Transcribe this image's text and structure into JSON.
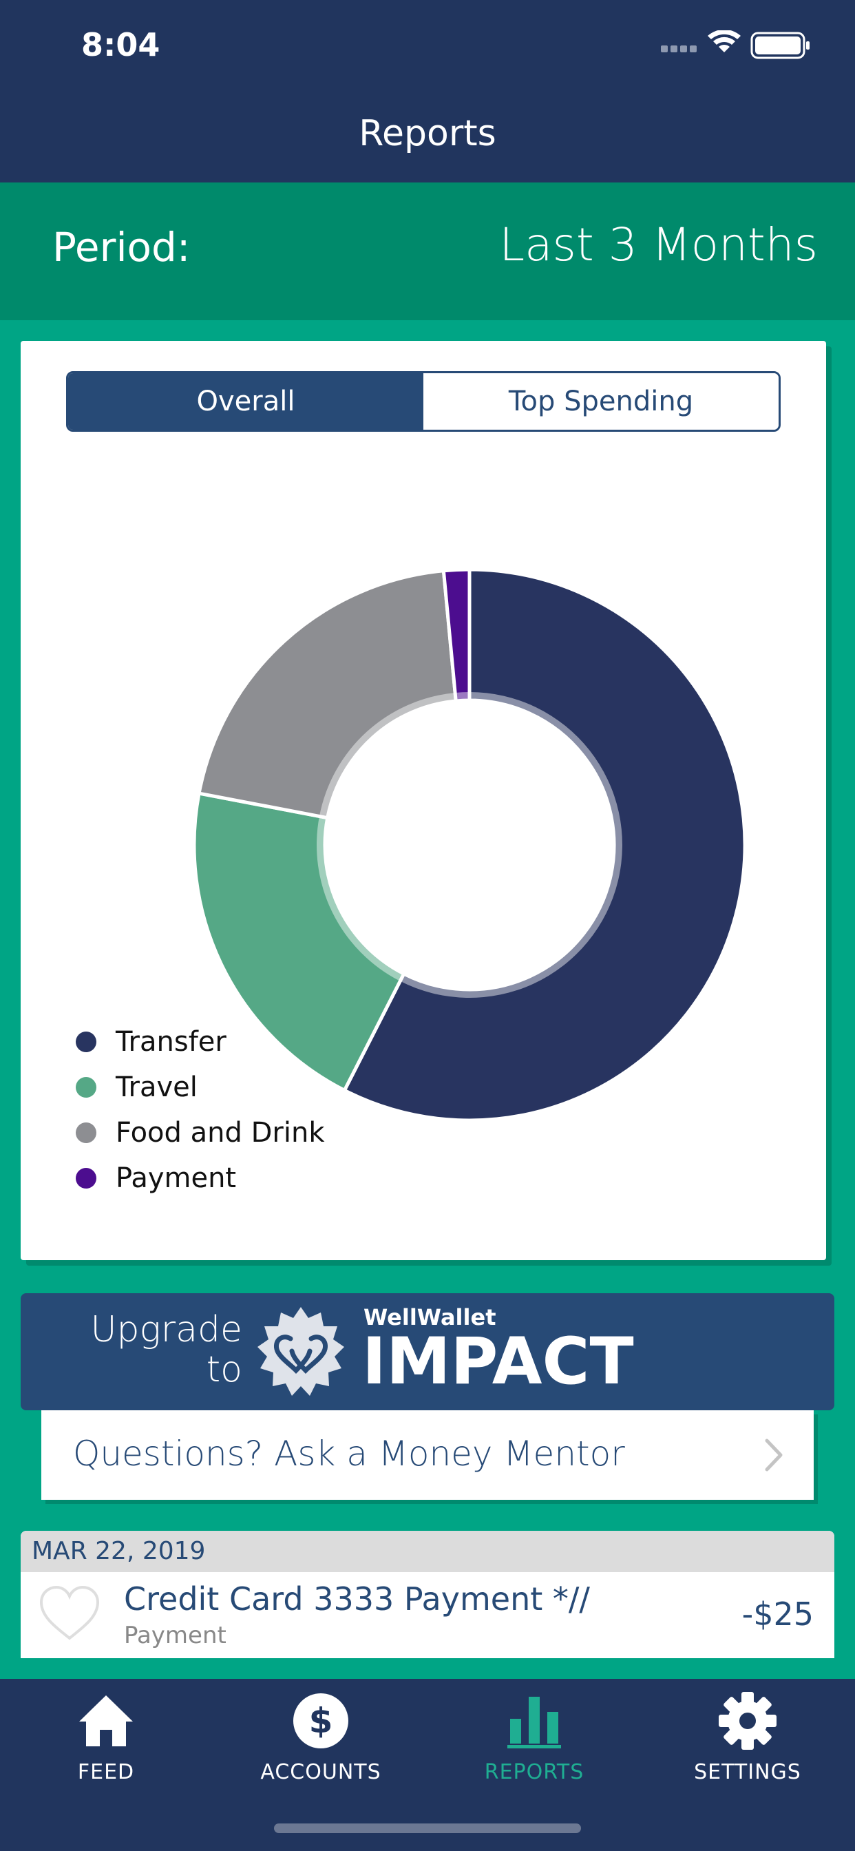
{
  "status_bar": {
    "time": "8:04"
  },
  "nav": {
    "title": "Reports"
  },
  "period": {
    "label": "Period:",
    "value": "Last 3 Months"
  },
  "segments": [
    {
      "label": "Overall",
      "active": true
    },
    {
      "label": "Top Spending",
      "active": false
    }
  ],
  "chart_data": {
    "type": "pie",
    "categories": [
      "Transfer",
      "Travel",
      "Food and Drink",
      "Payment"
    ],
    "values": [
      57.5,
      20.5,
      20.5,
      1.5
    ],
    "colors": [
      "#283460",
      "#55a886",
      "#8d8e92",
      "#4c0d8f"
    ],
    "legend_placement": "bottom-left",
    "donut": true
  },
  "upgrade": {
    "line1": "Upgrade",
    "line2": "to",
    "brand_name": "WellWallet",
    "brand_product": "IMPACT"
  },
  "mentor": {
    "label": "Questions? Ask a Money Mentor"
  },
  "feed": {
    "date": "MAR 22, 2019",
    "items": [
      {
        "title": "Credit Card 3333 Payment *//",
        "category": "Payment",
        "amount": "-$25"
      }
    ]
  },
  "tabs": [
    {
      "label": "FEED",
      "icon": "home-icon",
      "active": false
    },
    {
      "label": "ACCOUNTS",
      "icon": "dollar-icon",
      "active": false
    },
    {
      "label": "REPORTS",
      "icon": "bar-chart-icon",
      "active": true
    },
    {
      "label": "SETTINGS",
      "icon": "gear-icon",
      "active": false
    }
  ],
  "colors": {
    "nav": "#21355e",
    "accent": "#00a585",
    "period": "#008a6b",
    "card_blue": "#274a76"
  }
}
